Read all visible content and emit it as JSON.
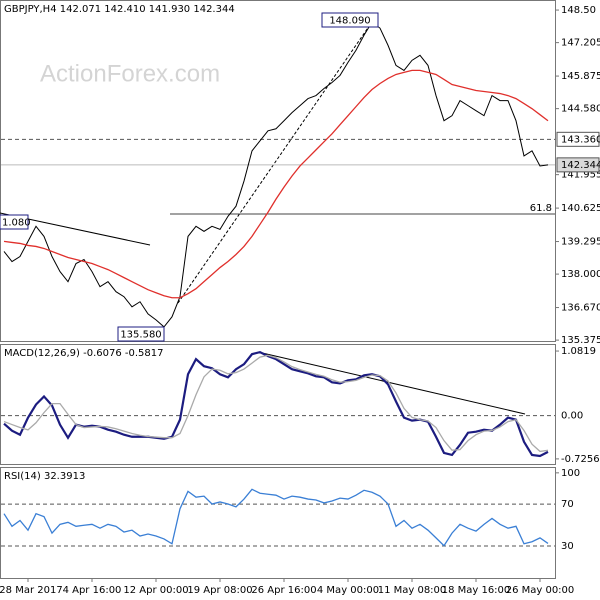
{
  "chart_data": [
    {
      "type": "line",
      "title": "GBPJPY,H4 142.071 142.410 141.930 142.344",
      "watermark": "ActionForex.com",
      "high_label": "148.090",
      "low_label": "135.580",
      "left_label": "1.080",
      "fib_label": "61.8",
      "ylim": [
        135.3,
        148.9
      ],
      "yticks": [
        {
          "value": 148.5,
          "label": "148.50"
        },
        147.205,
        145.875,
        {
          "value": 144.58,
          "label": "144.580"
        },
        141.955,
        140.625,
        139.295,
        {
          "value": 138,
          "label": "138.000"
        },
        {
          "value": 136.67,
          "label": "136.670"
        },
        135.375
      ],
      "levels": [
        {
          "value": 143.36,
          "label": "143.360",
          "style": "dashed",
          "box": "#ffffff"
        },
        {
          "value": 142.344,
          "style": "solid",
          "box": "#d9d9d9"
        }
      ],
      "series": [
        {
          "color": "#000000",
          "values": [
            138.9,
            138.5,
            138.7,
            139.3,
            139.9,
            139.5,
            138.7,
            138.1,
            137.7,
            138.42,
            138.58,
            138.1,
            137.5,
            137.7,
            137.3,
            137.1,
            136.7,
            136.9,
            136.42,
            136.18,
            135.9,
            136.3,
            137.1,
            139.5,
            139.9,
            139.7,
            139.9,
            139.78,
            140.3,
            140.7,
            141.7,
            142.9,
            143.3,
            143.7,
            143.78,
            144.1,
            144.42,
            144.7,
            144.98,
            145.1,
            145.38,
            145.62,
            145.9,
            146.42,
            146.9,
            147.5,
            148.02,
            147.78,
            147.1,
            146.3,
            146.1,
            146.5,
            146.7,
            146.3,
            145.1,
            144.1,
            144.3,
            144.9,
            144.7,
            144.5,
            144.3,
            145.1,
            144.9,
            144.9,
            144.1,
            142.7,
            142.9,
            142.3,
            142.344
          ]
        },
        {
          "color": "#e0302c",
          "values": [
            139.3,
            139.26,
            139.22,
            139.14,
            139.1,
            139.02,
            138.9,
            138.78,
            138.66,
            138.58,
            138.5,
            138.42,
            138.3,
            138.18,
            138.02,
            137.86,
            137.7,
            137.54,
            137.38,
            137.26,
            137.14,
            137.06,
            137.06,
            137.22,
            137.42,
            137.7,
            137.98,
            138.26,
            138.5,
            138.78,
            139.1,
            139.5,
            139.98,
            140.46,
            140.98,
            141.46,
            141.9,
            142.3,
            142.62,
            142.94,
            143.26,
            143.58,
            143.94,
            144.3,
            144.66,
            145.02,
            145.34,
            145.58,
            145.78,
            145.94,
            146.02,
            146.1,
            146.1,
            146.02,
            145.94,
            145.74,
            145.54,
            145.46,
            145.38,
            145.3,
            145.26,
            145.22,
            145.18,
            145.1,
            144.98,
            144.78,
            144.58,
            144.34,
            144.1
          ]
        }
      ]
    },
    {
      "type": "line",
      "title": "MACD(12,26,9) -0.6076 -0.5817",
      "ylim": [
        -0.828,
        1.2
      ],
      "yticks": [
        1.0819,
        -0.7256
      ],
      "levels": [
        {
          "value": 0,
          "label": "0.00",
          "style": "dashed"
        }
      ],
      "series": [
        {
          "color": "#1c1c80",
          "values": [
            -0.135,
            -0.253,
            -0.321,
            -0.034,
            0.186,
            0.321,
            0.169,
            -0.152,
            -0.372,
            -0.152,
            -0.186,
            -0.169,
            -0.186,
            -0.236,
            -0.27,
            -0.321,
            -0.355,
            -0.355,
            -0.355,
            -0.372,
            -0.389,
            -0.355,
            -0.068,
            0.693,
            0.946,
            0.828,
            0.794,
            0.693,
            0.642,
            0.777,
            0.861,
            1.03,
            1.064,
            0.997,
            0.946,
            0.861,
            0.777,
            0.743,
            0.709,
            0.659,
            0.642,
            0.557,
            0.541,
            0.591,
            0.608,
            0.676,
            0.693,
            0.659,
            0.524,
            0.236,
            -0.034,
            -0.084,
            -0.068,
            -0.101,
            -0.355,
            -0.625,
            -0.659,
            -0.49,
            -0.287,
            -0.27,
            -0.236,
            -0.253,
            -0.152,
            -0.034,
            -0.068,
            -0.439,
            -0.659,
            -0.676,
            -0.6076
          ]
        },
        {
          "color": "#aaaaaa",
          "values": [
            -0.1,
            -0.15,
            -0.2,
            -0.24,
            -0.12,
            0.05,
            0.2,
            0.2,
            0.02,
            -0.15,
            -0.2,
            -0.19,
            -0.18,
            -0.19,
            -0.22,
            -0.26,
            -0.3,
            -0.33,
            -0.35,
            -0.36,
            -0.37,
            -0.37,
            -0.3,
            0.0,
            0.35,
            0.65,
            0.78,
            0.76,
            0.7,
            0.72,
            0.78,
            0.88,
            0.98,
            1.01,
            0.97,
            0.9,
            0.82,
            0.77,
            0.73,
            0.69,
            0.66,
            0.6,
            0.56,
            0.57,
            0.59,
            0.64,
            0.68,
            0.67,
            0.58,
            0.38,
            0.12,
            -0.03,
            -0.07,
            -0.09,
            -0.2,
            -0.42,
            -0.58,
            -0.57,
            -0.42,
            -0.32,
            -0.26,
            -0.25,
            -0.19,
            -0.1,
            -0.07,
            -0.25,
            -0.48,
            -0.6,
            -0.5817
          ]
        }
      ]
    },
    {
      "type": "line",
      "title": "RSI(14) 32.3913",
      "ylim": [
        -0.7,
        105.6
      ],
      "yticks": [
        100
      ],
      "levels": [
        {
          "value": 70,
          "style": "dashed"
        },
        {
          "value": 30,
          "style": "dashed"
        }
      ],
      "categories": [
        null,
        null,
        null,
        "28 Mar 2017",
        null,
        null,
        null,
        null,
        null,
        null,
        null,
        "4 Apr 16:00",
        null,
        null,
        null,
        null,
        null,
        null,
        null,
        "12 Apr 00:00",
        null,
        null,
        null,
        null,
        null,
        null,
        null,
        "19 Apr 08:00",
        null,
        null,
        null,
        null,
        null,
        null,
        null,
        "26 Apr 16:00",
        null,
        null,
        null,
        null,
        null,
        null,
        null,
        "4 May 00:00",
        null,
        null,
        null,
        null,
        null,
        null,
        null,
        "11 May 08:00",
        null,
        null,
        null,
        null,
        null,
        null,
        null,
        "18 May 16:00",
        null,
        null,
        null,
        null,
        null,
        null,
        null,
        "26 May 00:00",
        null
      ],
      "series": [
        {
          "color": "#3a7fd5",
          "values": [
            60.9,
            48.8,
            54.4,
            45.1,
            60.9,
            58.1,
            42.3,
            50.7,
            52.6,
            48.8,
            49.8,
            50.7,
            47.0,
            50.7,
            48.8,
            43.3,
            45.1,
            39.5,
            41.4,
            39.5,
            36.7,
            32.1,
            65.6,
            82.3,
            76.7,
            77.7,
            70.2,
            72.1,
            70.2,
            67.4,
            74.9,
            84.2,
            80.5,
            79.5,
            78.6,
            74.9,
            77.7,
            76.7,
            74.9,
            74.0,
            71.2,
            73.0,
            75.8,
            74.9,
            78.6,
            83.3,
            81.4,
            77.7,
            70.2,
            48.8,
            54.4,
            47.0,
            50.7,
            45.1,
            37.7,
            30.2,
            42.3,
            50.7,
            47.0,
            44.2,
            50.7,
            56.3,
            50.7,
            47.0,
            48.8,
            32.1,
            34.0,
            37.7,
            32.3913
          ]
        }
      ]
    }
  ]
}
